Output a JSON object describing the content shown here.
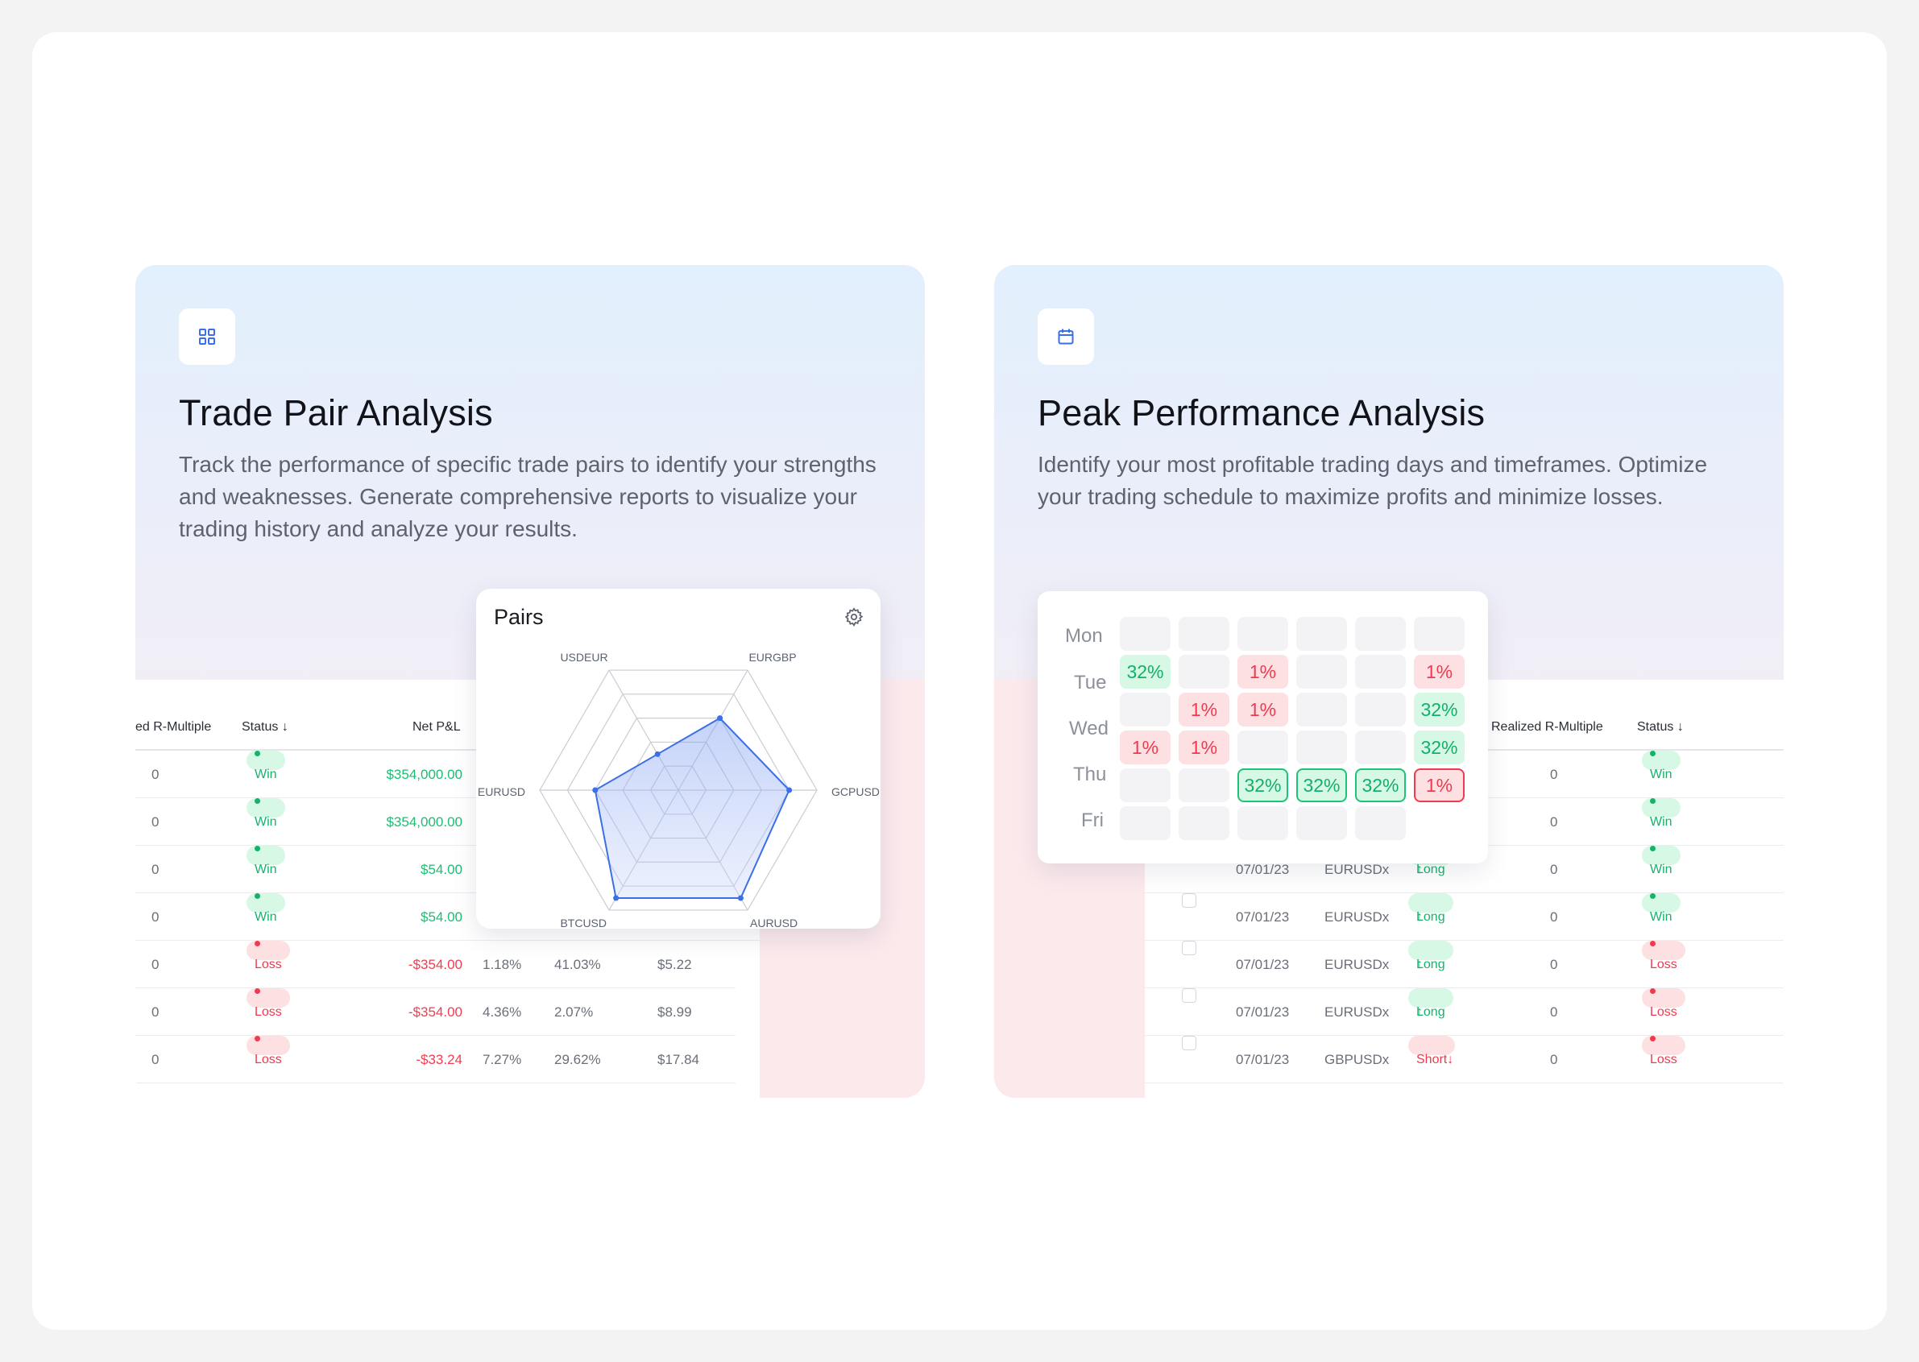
{
  "left_card": {
    "title": "Trade Pair Analysis",
    "description": "Track the performance of specific trade pairs to identify your strengths and weaknesses. Generate comprehensive reports to visualize your trading history and analyze your results.",
    "icon": "grid-icon",
    "table": {
      "headers": [
        "ed R-Multiple",
        "Status",
        "Net P&L"
      ],
      "rows": [
        {
          "r": "0",
          "status": "Win",
          "pnl": "$354,000.00",
          "c1": "",
          "c2": "",
          "c3": ""
        },
        {
          "r": "0",
          "status": "Win",
          "pnl": "$354,000.00",
          "c1": "",
          "c2": "",
          "c3": ""
        },
        {
          "r": "0",
          "status": "Win",
          "pnl": "$54.00",
          "c1": "",
          "c2": "",
          "c3": ""
        },
        {
          "r": "0",
          "status": "Win",
          "pnl": "$54.00",
          "c1": "",
          "c2": "",
          "c3": ""
        },
        {
          "r": "0",
          "status": "Loss",
          "pnl": "-$354.00",
          "c1": "1.18%",
          "c2": "41.03%",
          "c3": "$5.22"
        },
        {
          "r": "0",
          "status": "Loss",
          "pnl": "-$354.00",
          "c1": "4.36%",
          "c2": "2.07%",
          "c3": "$8.99"
        },
        {
          "r": "0",
          "status": "Loss",
          "pnl": "-$33.24",
          "c1": "7.27%",
          "c2": "29.62%",
          "c3": "$17.84"
        }
      ]
    }
  },
  "pairs_card": {
    "title": "Pairs",
    "gear": "gear-icon"
  },
  "chart_data": {
    "type": "radar",
    "title": "Pairs",
    "axes": [
      "USDEUR",
      "EURGBP",
      "GCPUSD",
      "AURUSD",
      "BTCUSD",
      "EURUSD"
    ],
    "values": [
      0.3,
      0.6,
      0.8,
      0.9,
      0.9,
      0.6
    ],
    "max": 1,
    "rings": 5,
    "color": "#3b6fe8"
  },
  "right_card": {
    "title": "Peak Performance Analysis",
    "description": "Identify your most profitable trading days and timeframes. Optimize your trading schedule to maximize profits and minimize losses.",
    "icon": "calendar-icon",
    "heatmap": {
      "days": [
        "Mon",
        "Tue",
        "Wed",
        "Thu",
        "Fri"
      ],
      "rows": [
        [
          "",
          "",
          "",
          "",
          "",
          ""
        ],
        [
          "32%",
          "",
          "1%",
          "",
          "",
          "1%"
        ],
        [
          "",
          "1%",
          "1%",
          "",
          "",
          "32%"
        ],
        [
          "1%",
          "1%",
          "",
          "",
          "",
          "32%"
        ],
        [
          "",
          "",
          "32%",
          "32%",
          "32%",
          "1%"
        ],
        [
          "",
          "",
          "",
          "",
          ""
        ]
      ],
      "styles": [
        [
          "e",
          "e",
          "e",
          "e",
          "e",
          "e"
        ],
        [
          "g",
          "e",
          "r",
          "e",
          "e",
          "r"
        ],
        [
          "e",
          "r",
          "r",
          "e",
          "e",
          "g"
        ],
        [
          "r",
          "r",
          "e",
          "e",
          "e",
          "g"
        ],
        [
          "e",
          "e",
          "gb",
          "gb",
          "gb",
          "rb"
        ],
        [
          "e",
          "e",
          "e",
          "e",
          "e"
        ]
      ]
    },
    "table": {
      "headers": [
        "Realized R-Multiple",
        "Status"
      ],
      "rows": [
        {
          "date": "",
          "pair": "",
          "dir": "",
          "r": "0",
          "status": "Win"
        },
        {
          "date": "",
          "pair": "",
          "dir": "",
          "r": "0",
          "status": "Win"
        },
        {
          "date": "07/01/23",
          "pair": "EURUSDx",
          "dir": "Long",
          "r": "0",
          "status": "Win"
        },
        {
          "date": "07/01/23",
          "pair": "EURUSDx",
          "dir": "Long",
          "r": "0",
          "status": "Win"
        },
        {
          "date": "07/01/23",
          "pair": "EURUSDx",
          "dir": "Long",
          "r": "0",
          "status": "Loss"
        },
        {
          "date": "07/01/23",
          "pair": "EURUSDx",
          "dir": "Long",
          "r": "0",
          "status": "Loss"
        },
        {
          "date": "07/01/23",
          "pair": "GBPUSDx",
          "dir": "Short",
          "r": "0",
          "status": "Loss"
        }
      ]
    }
  }
}
